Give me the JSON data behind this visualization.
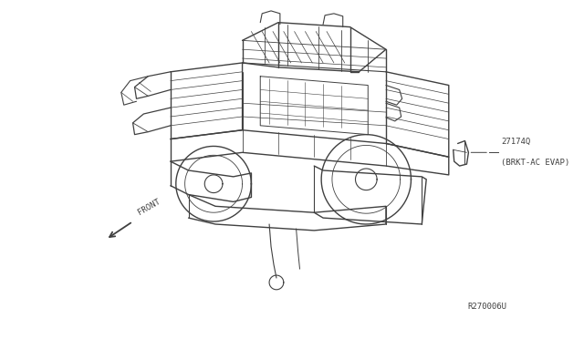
{
  "bg_color": "#ffffff",
  "fig_width": 6.4,
  "fig_height": 3.72,
  "dpi": 100,
  "part_number": "27174Q",
  "part_name": "(BRKT-AC EVAP)",
  "ref_number": "R270006U",
  "text_color": "#404040",
  "line_color": "#404040",
  "font_size_part": 6.5,
  "font_size_ref": 6.5,
  "font_size_front": 6.5,
  "front_label": "FRONT"
}
